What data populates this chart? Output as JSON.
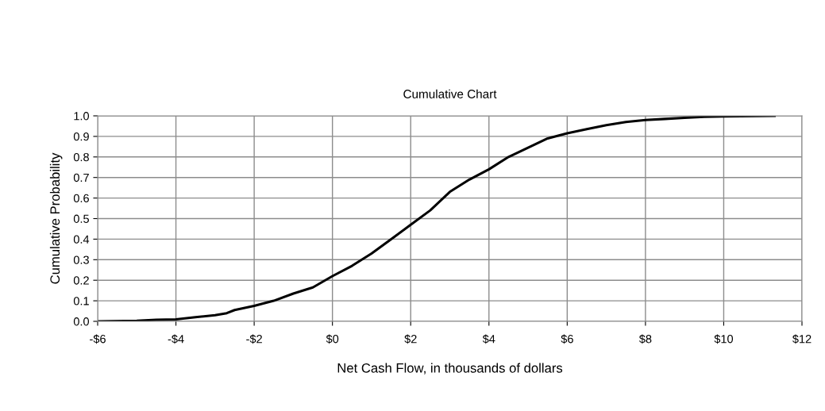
{
  "chart_data": {
    "type": "line",
    "title": "Cumulative Chart",
    "xlabel": "Net Cash Flow, in thousands of dollars",
    "ylabel": "Cumulative Probability",
    "x": [
      -6,
      -5,
      -4.5,
      -4,
      -3.5,
      -3,
      -2.7,
      -2.5,
      -2,
      -1.5,
      -1,
      -0.5,
      0,
      0.5,
      1,
      1.5,
      2,
      2.5,
      3,
      3.5,
      4,
      4.5,
      5,
      5.5,
      6,
      6.5,
      7,
      7.5,
      8,
      8.5,
      9,
      9.5,
      10,
      11.3
    ],
    "series": [
      {
        "color": "#000000",
        "values": [
          0,
          0.003,
          0.008,
          0.01,
          0.02,
          0.03,
          0.04,
          0.055,
          0.075,
          0.1,
          0.135,
          0.165,
          0.22,
          0.27,
          0.33,
          0.4,
          0.47,
          0.54,
          0.63,
          0.69,
          0.74,
          0.8,
          0.845,
          0.89,
          0.915,
          0.935,
          0.955,
          0.97,
          0.98,
          0.985,
          0.99,
          0.995,
          0.997,
          1.0
        ]
      }
    ],
    "xlim": [
      -6,
      12
    ],
    "ylim": [
      0,
      1
    ],
    "xticks": [
      {
        "value": -6,
        "label": "-$6"
      },
      {
        "value": -4,
        "label": "-$4"
      },
      {
        "value": -2,
        "label": "-$2"
      },
      {
        "value": 0,
        "label": "$0"
      },
      {
        "value": 2,
        "label": "$2"
      },
      {
        "value": 4,
        "label": "$4"
      },
      {
        "value": 6,
        "label": "$6"
      },
      {
        "value": 8,
        "label": "$8"
      },
      {
        "value": 10,
        "label": "$10"
      },
      {
        "value": 12,
        "label": "$12"
      }
    ],
    "yticks": [
      {
        "value": 0,
        "label": "0.0"
      },
      {
        "value": 0.1,
        "label": "0.1"
      },
      {
        "value": 0.2,
        "label": "0.2"
      },
      {
        "value": 0.3,
        "label": "0.3"
      },
      {
        "value": 0.4,
        "label": "0.4"
      },
      {
        "value": 0.5,
        "label": "0.5"
      },
      {
        "value": 0.6,
        "label": "0.6"
      },
      {
        "value": 0.7,
        "label": "0.7"
      },
      {
        "value": 0.8,
        "label": "0.8"
      },
      {
        "value": 0.9,
        "label": "0.9"
      },
      {
        "value": 1,
        "label": "1.0"
      }
    ],
    "grid": true,
    "line_style": "solid",
    "marker": "none"
  }
}
